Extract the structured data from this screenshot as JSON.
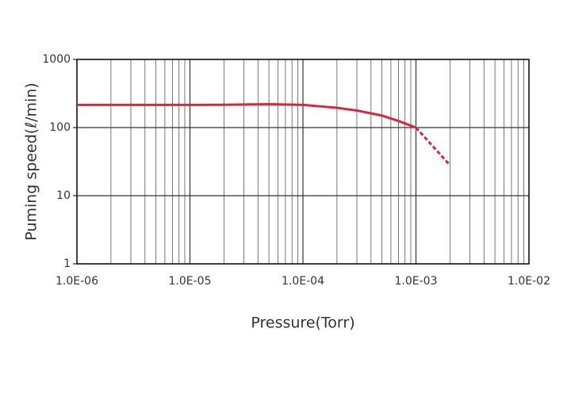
{
  "chart_data": {
    "type": "line",
    "x_label": "Pressure(Torr)",
    "y_label": "Puming speed(ℓ/min)",
    "log_x": true,
    "log_y": true,
    "grid": true,
    "minor_grid_x": true,
    "xlim": [
      1e-06,
      0.01
    ],
    "xticks": [
      {
        "value": 1e-06,
        "label": "1.0E-06"
      },
      {
        "value": 1e-05,
        "label": "1.0E-05"
      },
      {
        "value": 0.0001,
        "label": "1.0E-04"
      },
      {
        "value": 0.001,
        "label": "1.0E-03"
      },
      {
        "value": 0.01,
        "label": "1.0E-02"
      }
    ],
    "ylim": [
      1,
      1000
    ],
    "yticks": [
      1,
      10,
      100,
      1000
    ],
    "series": [
      {
        "color": "#d7263d",
        "style": "solid",
        "x": [
          1e-06,
          2e-06,
          5e-06,
          1e-05,
          2e-05,
          5e-05,
          0.0001,
          0.0002,
          0.0003,
          0.0005,
          0.0007,
          0.001
        ],
        "values": [
          215,
          215,
          215,
          215,
          216,
          220,
          215,
          195,
          178,
          150,
          125,
          100
        ]
      },
      {
        "color": "#d7263d",
        "style": "dashed",
        "x": [
          0.001,
          0.002
        ],
        "values": [
          100,
          28
        ]
      }
    ]
  }
}
